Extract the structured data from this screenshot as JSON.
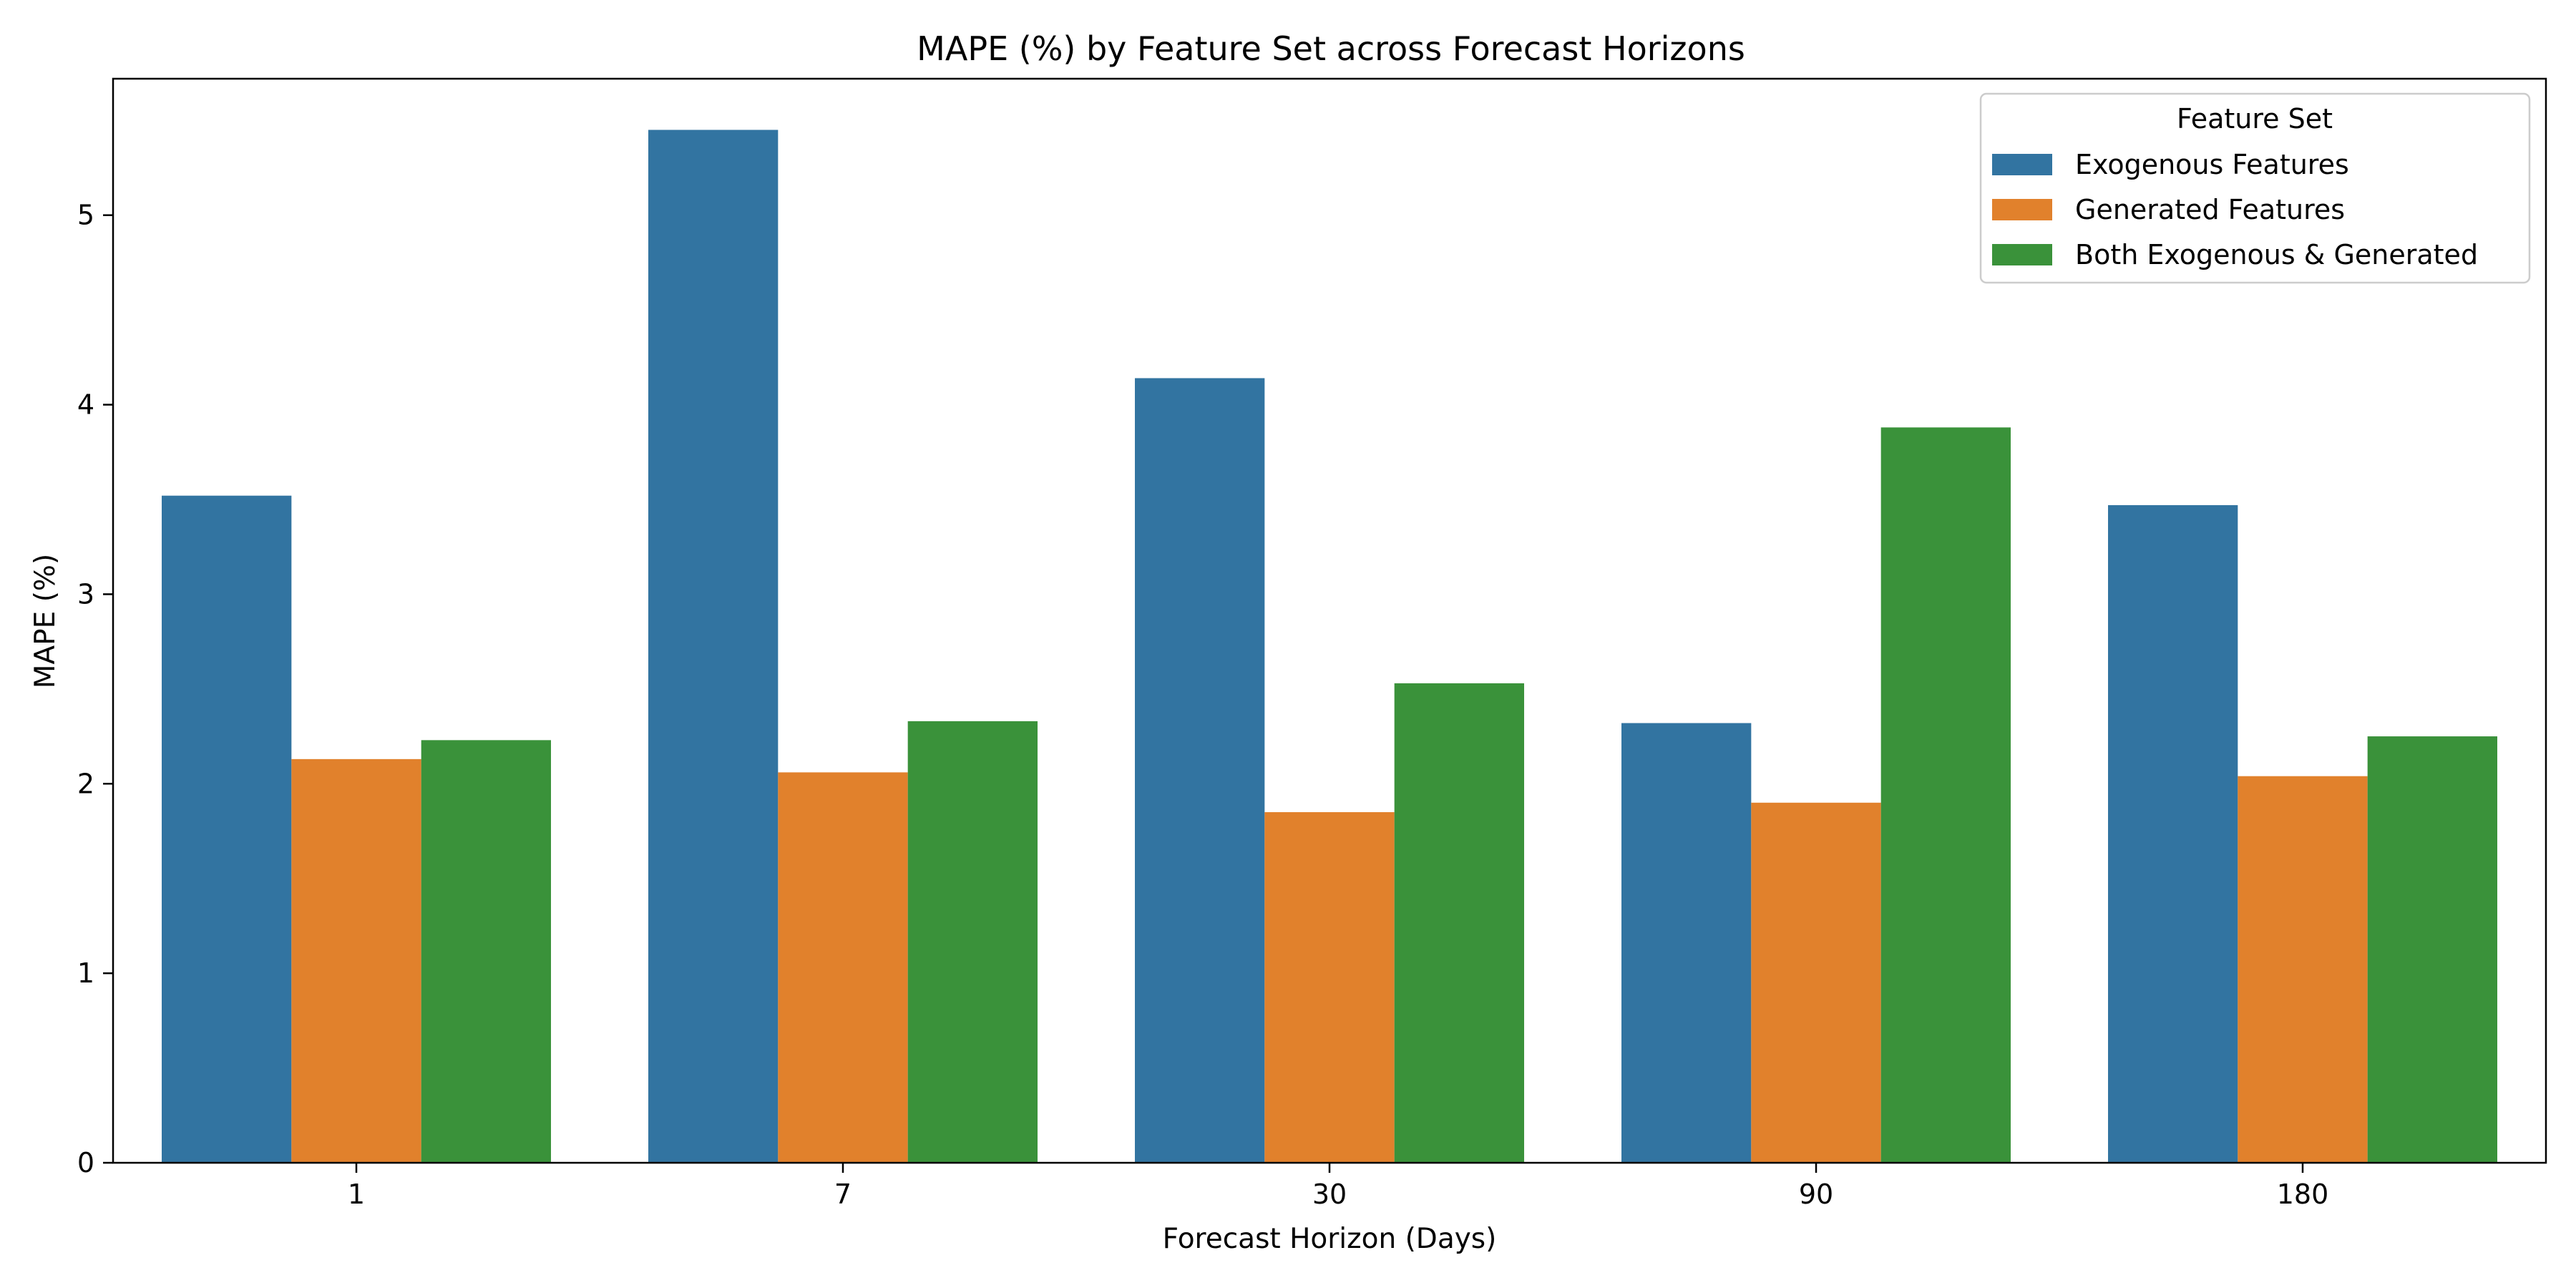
{
  "chart_data": {
    "type": "bar",
    "title": "MAPE (%) by Feature Set across Forecast Horizons",
    "xlabel": "Forecast Horizon (Days)",
    "ylabel": "MAPE (%)",
    "categories": [
      "1",
      "7",
      "30",
      "90",
      "180"
    ],
    "ylim": [
      0,
      5.72
    ],
    "yticks": [
      0,
      1,
      2,
      3,
      4,
      5
    ],
    "grid": false,
    "legend": {
      "title": "Feature Set",
      "placement": "top-right"
    },
    "series": [
      {
        "name": "Exogenous Features",
        "color": "#3274a1",
        "values": [
          3.52,
          5.45,
          4.14,
          2.32,
          3.47
        ]
      },
      {
        "name": "Generated Features",
        "color": "#e1812c",
        "values": [
          2.13,
          2.06,
          1.85,
          1.9,
          2.04
        ]
      },
      {
        "name": "Both Exogenous & Generated",
        "color": "#3a923a",
        "values": [
          2.23,
          2.33,
          2.53,
          3.88,
          2.25
        ]
      }
    ]
  }
}
